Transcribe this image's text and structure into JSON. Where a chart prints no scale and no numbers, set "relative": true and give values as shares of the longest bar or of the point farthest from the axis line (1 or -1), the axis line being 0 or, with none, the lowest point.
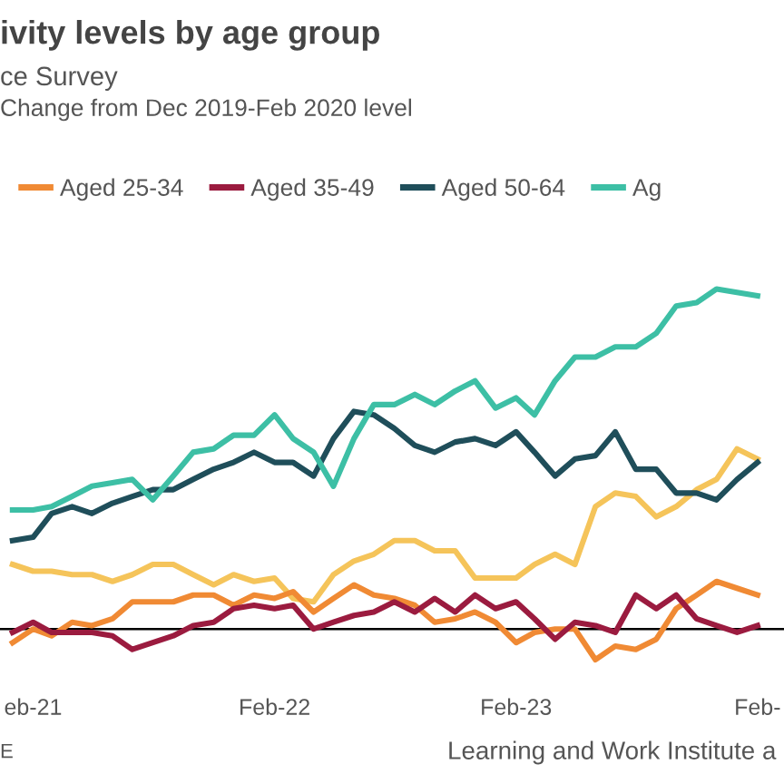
{
  "chart_data": {
    "type": "line",
    "title": "ivity levels by age group",
    "subtitle": "ce Survey",
    "relative": true,
    "legend": "top",
    "marker": "none",
    "line_style": "solid",
    "xlim": [
      "2020-12-13",
      "2024-03-12"
    ],
    "xticks": [
      {
        "value": "2021-02",
        "label": "eb-21"
      },
      {
        "value": "2022-02",
        "label": "Feb-22"
      },
      {
        "value": "2023-02",
        "label": "Feb-23"
      },
      {
        "value": "2024-02",
        "label": "Feb-"
      }
    ],
    "x": [
      "2021-01",
      "2021-02",
      "2021-03",
      "2021-04",
      "2021-05",
      "2021-06",
      "2021-07",
      "2021-08",
      "2021-09",
      "2021-10",
      "2021-11",
      "2021-12",
      "2022-01",
      "2022-02",
      "2022-03",
      "2022-04",
      "2022-05",
      "2022-06",
      "2022-07",
      "2022-08",
      "2022-09",
      "2022-10",
      "2022-11",
      "2022-12",
      "2023-01",
      "2023-02",
      "2023-03",
      "2023-04",
      "2023-05",
      "2023-06",
      "2023-07",
      "2023-08",
      "2023-09",
      "2023-10",
      "2023-11",
      "2023-12",
      "2024-01",
      "2024-02"
    ],
    "annotations": [
      "Change from Dec 2019-Feb 2020 level",
      "E",
      "Learning and Work Institute a"
    ],
    "series": [
      {
        "color": "#f5c45a",
        "values": [
          0.19,
          0.17,
          0.17,
          0.16,
          0.16,
          0.14,
          0.16,
          0.19,
          0.19,
          0.16,
          0.13,
          0.16,
          0.14,
          0.15,
          0.09,
          0.08,
          0.16,
          0.2,
          0.22,
          0.26,
          0.26,
          0.23,
          0.23,
          0.15,
          0.15,
          0.15,
          0.19,
          0.22,
          0.19,
          0.36,
          0.4,
          0.39,
          0.33,
          0.36,
          0.41,
          0.44,
          0.53,
          0.5
        ]
      },
      {
        "name": "Aged 25-34",
        "color": "#f08a34",
        "values": [
          -0.04,
          0,
          -0.02,
          0.02,
          0.01,
          0.03,
          0.08,
          0.08,
          0.08,
          0.1,
          0.1,
          0.07,
          0.1,
          0.09,
          0.11,
          0.05,
          0.09,
          0.13,
          0.1,
          0.09,
          0.07,
          0.02,
          0.03,
          0.05,
          0.02,
          -0.04,
          -0.01,
          0,
          0,
          -0.09,
          -0.05,
          -0.06,
          -0.03,
          0.06,
          0.1,
          0.14,
          0.12,
          0.1
        ]
      },
      {
        "name": "Aged 35-49",
        "color": "#9b1b3f",
        "values": [
          -0.01,
          0.02,
          -0.01,
          -0.01,
          -0.01,
          -0.02,
          -0.06,
          -0.04,
          -0.02,
          0.01,
          0.02,
          0.06,
          0.07,
          0.06,
          0.07,
          0,
          0.02,
          0.04,
          0.05,
          0.08,
          0.05,
          0.09,
          0.05,
          0.1,
          0.06,
          0.08,
          0.03,
          -0.03,
          0.02,
          0.01,
          -0.01,
          0.1,
          0.06,
          0.1,
          0.03,
          0.01,
          -0.01,
          0.01
        ]
      },
      {
        "name": "Aged 50-64",
        "color": "#1f4e5a",
        "values": [
          0.26,
          0.27,
          0.34,
          0.36,
          0.34,
          0.37,
          0.39,
          0.41,
          0.41,
          0.44,
          0.47,
          0.49,
          0.52,
          0.49,
          0.49,
          0.45,
          0.56,
          0.64,
          0.63,
          0.59,
          0.54,
          0.52,
          0.55,
          0.56,
          0.54,
          0.58,
          0.52,
          0.45,
          0.5,
          0.51,
          0.58,
          0.47,
          0.47,
          0.4,
          0.4,
          0.38,
          0.44,
          0.49
        ]
      },
      {
        "name": "Ag",
        "color": "#3dbfa5",
        "values": [
          0.35,
          0.35,
          0.36,
          0.39,
          0.42,
          0.43,
          0.44,
          0.38,
          0.45,
          0.52,
          0.53,
          0.57,
          0.57,
          0.63,
          0.56,
          0.52,
          0.42,
          0.56,
          0.66,
          0.66,
          0.69,
          0.66,
          0.7,
          0.73,
          0.65,
          0.68,
          0.63,
          0.73,
          0.8,
          0.8,
          0.83,
          0.83,
          0.87,
          0.95,
          0.96,
          1.0,
          0.99,
          0.98
        ]
      }
    ]
  }
}
